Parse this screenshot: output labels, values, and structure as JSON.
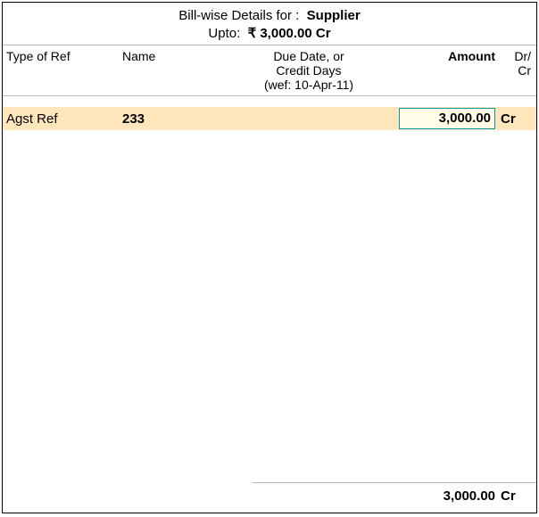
{
  "title": {
    "label": "Bill-wise Details for :",
    "party": "Supplier",
    "upto_label": "Upto:",
    "upto_value": "₹ 3,000.00 Cr"
  },
  "columns": {
    "type": "Type of Ref",
    "name": "Name",
    "due_line1": "Due Date, or",
    "due_line2": "Credit Days",
    "due_line3": "(wef: 10-Apr-11)",
    "amount": "Amount",
    "drcr_line1": "Dr/",
    "drcr_line2": "Cr"
  },
  "row": {
    "type": "Agst Ref",
    "name": "233",
    "due": "",
    "amount": "3,000.00",
    "drcr": "Cr"
  },
  "total": {
    "amount": "3,000.00",
    "drcr": "Cr"
  },
  "colors": {
    "row_bg": "#ffe6bb",
    "cell_border": "#0097a7",
    "cell_bg": "#fffde8"
  }
}
